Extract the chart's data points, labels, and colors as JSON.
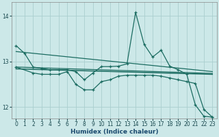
{
  "xlabel": "Humidex (Indice chaleur)",
  "bg_color": "#cce8e8",
  "grid_color": "#aacece",
  "line_color": "#1a6b60",
  "xlim": [
    -0.5,
    23.5
  ],
  "ylim": [
    11.75,
    14.3
  ],
  "yticks": [
    12,
    13,
    14
  ],
  "xticks": [
    0,
    1,
    2,
    3,
    4,
    5,
    6,
    7,
    8,
    9,
    10,
    11,
    12,
    13,
    14,
    15,
    16,
    17,
    18,
    19,
    20,
    21,
    22,
    23
  ],
  "line1_x": [
    0,
    1,
    2,
    3,
    4,
    5,
    6,
    7,
    8,
    9,
    10,
    11,
    12,
    13,
    14,
    15,
    16,
    17,
    18,
    19,
    20,
    21,
    22,
    23
  ],
  "line1_y": [
    13.35,
    13.18,
    12.88,
    12.85,
    12.82,
    12.82,
    12.82,
    12.78,
    12.6,
    12.75,
    12.89,
    12.89,
    12.9,
    12.95,
    14.08,
    13.38,
    13.1,
    13.25,
    12.9,
    12.82,
    12.72,
    12.05,
    11.8,
    11.78
  ],
  "line2_x": [
    0,
    2,
    3,
    4,
    5,
    6,
    7,
    8,
    9,
    10,
    11,
    12,
    13,
    14,
    15,
    16,
    17,
    18,
    19,
    20,
    21,
    22,
    23
  ],
  "line2_y": [
    12.88,
    12.75,
    12.72,
    12.72,
    12.72,
    12.78,
    12.5,
    12.38,
    12.38,
    12.56,
    12.6,
    12.68,
    12.7,
    12.7,
    12.7,
    12.7,
    12.68,
    12.64,
    12.6,
    12.56,
    12.52,
    11.95,
    11.78
  ],
  "line3_x": [
    0,
    23
  ],
  "line3_y": [
    13.22,
    12.78
  ],
  "line4_x": [
    0,
    23
  ],
  "line4_y": [
    12.88,
    12.74
  ],
  "line5_x": [
    0,
    23
  ],
  "line5_y": [
    12.84,
    12.72
  ]
}
